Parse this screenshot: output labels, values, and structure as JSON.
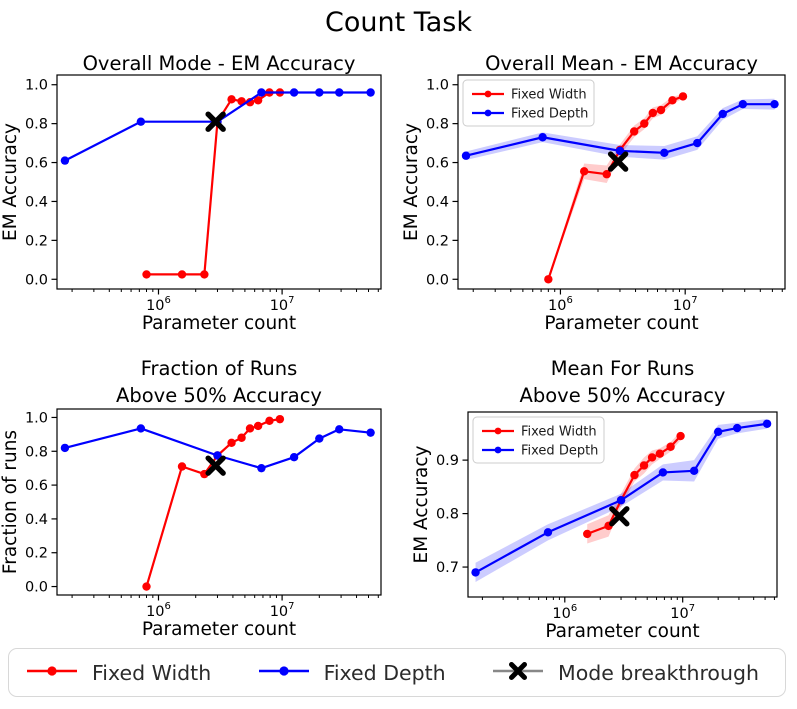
{
  "figure": {
    "title": "Count Task"
  },
  "colors": {
    "fixed_width": "#ff0000",
    "fixed_depth": "#0000ff",
    "breakthrough": "#000000",
    "legend_line_gray": "#888888",
    "band_opacity": 0.2,
    "axis": "#000000",
    "legend_border": "#d8d8d8",
    "text": "#2b2b2b"
  },
  "legend": {
    "items": [
      {
        "label": "Fixed Width",
        "color": "#ff0000",
        "marker": "dot"
      },
      {
        "label": "Fixed Depth",
        "color": "#0000ff",
        "marker": "dot"
      },
      {
        "label": "Mode breakthrough",
        "color": "#888888",
        "marker": "x"
      }
    ]
  },
  "chart_data": [
    {
      "id": "overall-mode",
      "type": "line",
      "title_lines": [
        "Overall Mode - EM Accuracy"
      ],
      "xlabel": "Parameter count",
      "ylabel": "EM Accuracy",
      "x_scale": "log",
      "xlim": [
        151000,
        63100000
      ],
      "ylim": [
        -0.05,
        1.05
      ],
      "yticks": [
        0.0,
        0.2,
        0.4,
        0.6,
        0.8,
        1.0
      ],
      "xticks": [
        1000000,
        10000000
      ],
      "grid": false,
      "show_legend": false,
      "series": [
        {
          "name": "Fixed Width",
          "color": "#ff0000",
          "x": [
            800000,
            1550000,
            2350000,
            3000000,
            3900000,
            4700000,
            5500000,
            6400000,
            7900000,
            9600000
          ],
          "y": [
            0.025,
            0.025,
            0.025,
            0.81,
            0.925,
            0.915,
            0.91,
            0.92,
            0.96,
            0.96
          ],
          "band": null
        },
        {
          "name": "Fixed Depth",
          "color": "#0000ff",
          "x": [
            175000,
            720000,
            3000000,
            6800000,
            12500000,
            20000000,
            29000000,
            52000000
          ],
          "y": [
            0.61,
            0.81,
            0.81,
            0.96,
            0.96,
            0.96,
            0.96,
            0.96
          ],
          "band": null
        }
      ],
      "breakthrough": {
        "name": "Mode breakthrough",
        "x": 2900000,
        "y": 0.81
      }
    },
    {
      "id": "overall-mean",
      "type": "line",
      "title_lines": [
        "Overall Mean - EM Accuracy"
      ],
      "xlabel": "Parameter count",
      "ylabel": "EM Accuracy",
      "x_scale": "log",
      "xlim": [
        151000,
        63100000
      ],
      "ylim": [
        -0.05,
        1.05
      ],
      "yticks": [
        0.0,
        0.2,
        0.4,
        0.6,
        0.8,
        1.0
      ],
      "xticks": [
        1000000,
        10000000
      ],
      "grid": false,
      "show_legend": true,
      "legend_entries": [
        "Fixed Width",
        "Fixed Depth"
      ],
      "series": [
        {
          "name": "Fixed Width",
          "color": "#ff0000",
          "x": [
            800000,
            1550000,
            2350000,
            3000000,
            3900000,
            4700000,
            5500000,
            6400000,
            7900000,
            9600000
          ],
          "y": [
            0.0,
            0.555,
            0.54,
            0.665,
            0.76,
            0.8,
            0.855,
            0.87,
            0.92,
            0.94
          ],
          "band": [
            0.005,
            0.04,
            0.045,
            0.028,
            0.03,
            0.028,
            0.028,
            0.025,
            0.018,
            0.012
          ]
        },
        {
          "name": "Fixed Depth",
          "color": "#0000ff",
          "x": [
            175000,
            720000,
            3000000,
            6800000,
            12500000,
            20000000,
            29000000,
            52000000
          ],
          "y": [
            0.635,
            0.73,
            0.66,
            0.65,
            0.7,
            0.85,
            0.9,
            0.9
          ],
          "band": [
            0.022,
            0.025,
            0.03,
            0.035,
            0.035,
            0.03,
            0.025,
            0.028
          ]
        }
      ],
      "breakthrough": {
        "name": "Mode breakthrough",
        "x": 2900000,
        "y": 0.605
      }
    },
    {
      "id": "fraction-runs",
      "type": "line",
      "title_lines": [
        "Fraction of Runs",
        "Above 50% Accuracy"
      ],
      "xlabel": "Parameter count",
      "ylabel": "Fraction of runs",
      "x_scale": "log",
      "xlim": [
        151000,
        63100000
      ],
      "ylim": [
        -0.05,
        1.05
      ],
      "yticks": [
        0.0,
        0.2,
        0.4,
        0.6,
        0.8,
        1.0
      ],
      "xticks": [
        1000000,
        10000000
      ],
      "grid": false,
      "show_legend": false,
      "series": [
        {
          "name": "Fixed Width",
          "color": "#ff0000",
          "x": [
            800000,
            1550000,
            2350000,
            3000000,
            3900000,
            4700000,
            5500000,
            6400000,
            7900000,
            9600000
          ],
          "y": [
            0.0,
            0.71,
            0.665,
            0.775,
            0.85,
            0.88,
            0.935,
            0.95,
            0.98,
            0.99
          ],
          "band": null
        },
        {
          "name": "Fixed Depth",
          "color": "#0000ff",
          "x": [
            175000,
            720000,
            3000000,
            6800000,
            12500000,
            20000000,
            29000000,
            52000000
          ],
          "y": [
            0.82,
            0.935,
            0.775,
            0.7,
            0.765,
            0.875,
            0.93,
            0.91
          ],
          "band": null
        }
      ],
      "breakthrough": {
        "name": "Mode breakthrough",
        "x": 2900000,
        "y": 0.715
      }
    },
    {
      "id": "mean-runs",
      "type": "line",
      "title_lines": [
        "Mean For Runs",
        "Above 50% Accuracy"
      ],
      "xlabel": "Parameter count",
      "ylabel": "EM Accuracy",
      "x_scale": "log",
      "xlim": [
        151000,
        63100000
      ],
      "ylim": [
        0.644,
        0.99
      ],
      "yticks": [
        0.7,
        0.8,
        0.9
      ],
      "xticks": [
        1000000,
        10000000
      ],
      "grid": false,
      "show_legend": true,
      "legend_entries": [
        "Fixed Width",
        "Fixed Depth"
      ],
      "series": [
        {
          "name": "Fixed Width",
          "color": "#ff0000",
          "x": [
            1550000,
            2350000,
            3000000,
            3900000,
            4700000,
            5500000,
            6400000,
            7900000,
            9600000
          ],
          "y": [
            0.762,
            0.777,
            0.825,
            0.872,
            0.89,
            0.905,
            0.912,
            0.925,
            0.945
          ],
          "band": [
            0.018,
            0.02,
            0.012,
            0.012,
            0.015,
            0.013,
            0.01,
            0.009,
            0.008
          ]
        },
        {
          "name": "Fixed Depth",
          "color": "#0000ff",
          "x": [
            175000,
            720000,
            3000000,
            6800000,
            12500000,
            20000000,
            29000000,
            52000000
          ],
          "y": [
            0.69,
            0.765,
            0.825,
            0.877,
            0.88,
            0.953,
            0.96,
            0.968
          ],
          "band": [
            0.018,
            0.015,
            0.012,
            0.015,
            0.02,
            0.013,
            0.01,
            0.009
          ]
        }
      ],
      "breakthrough": {
        "name": "Mode breakthrough",
        "x": 2900000,
        "y": 0.795
      }
    }
  ]
}
